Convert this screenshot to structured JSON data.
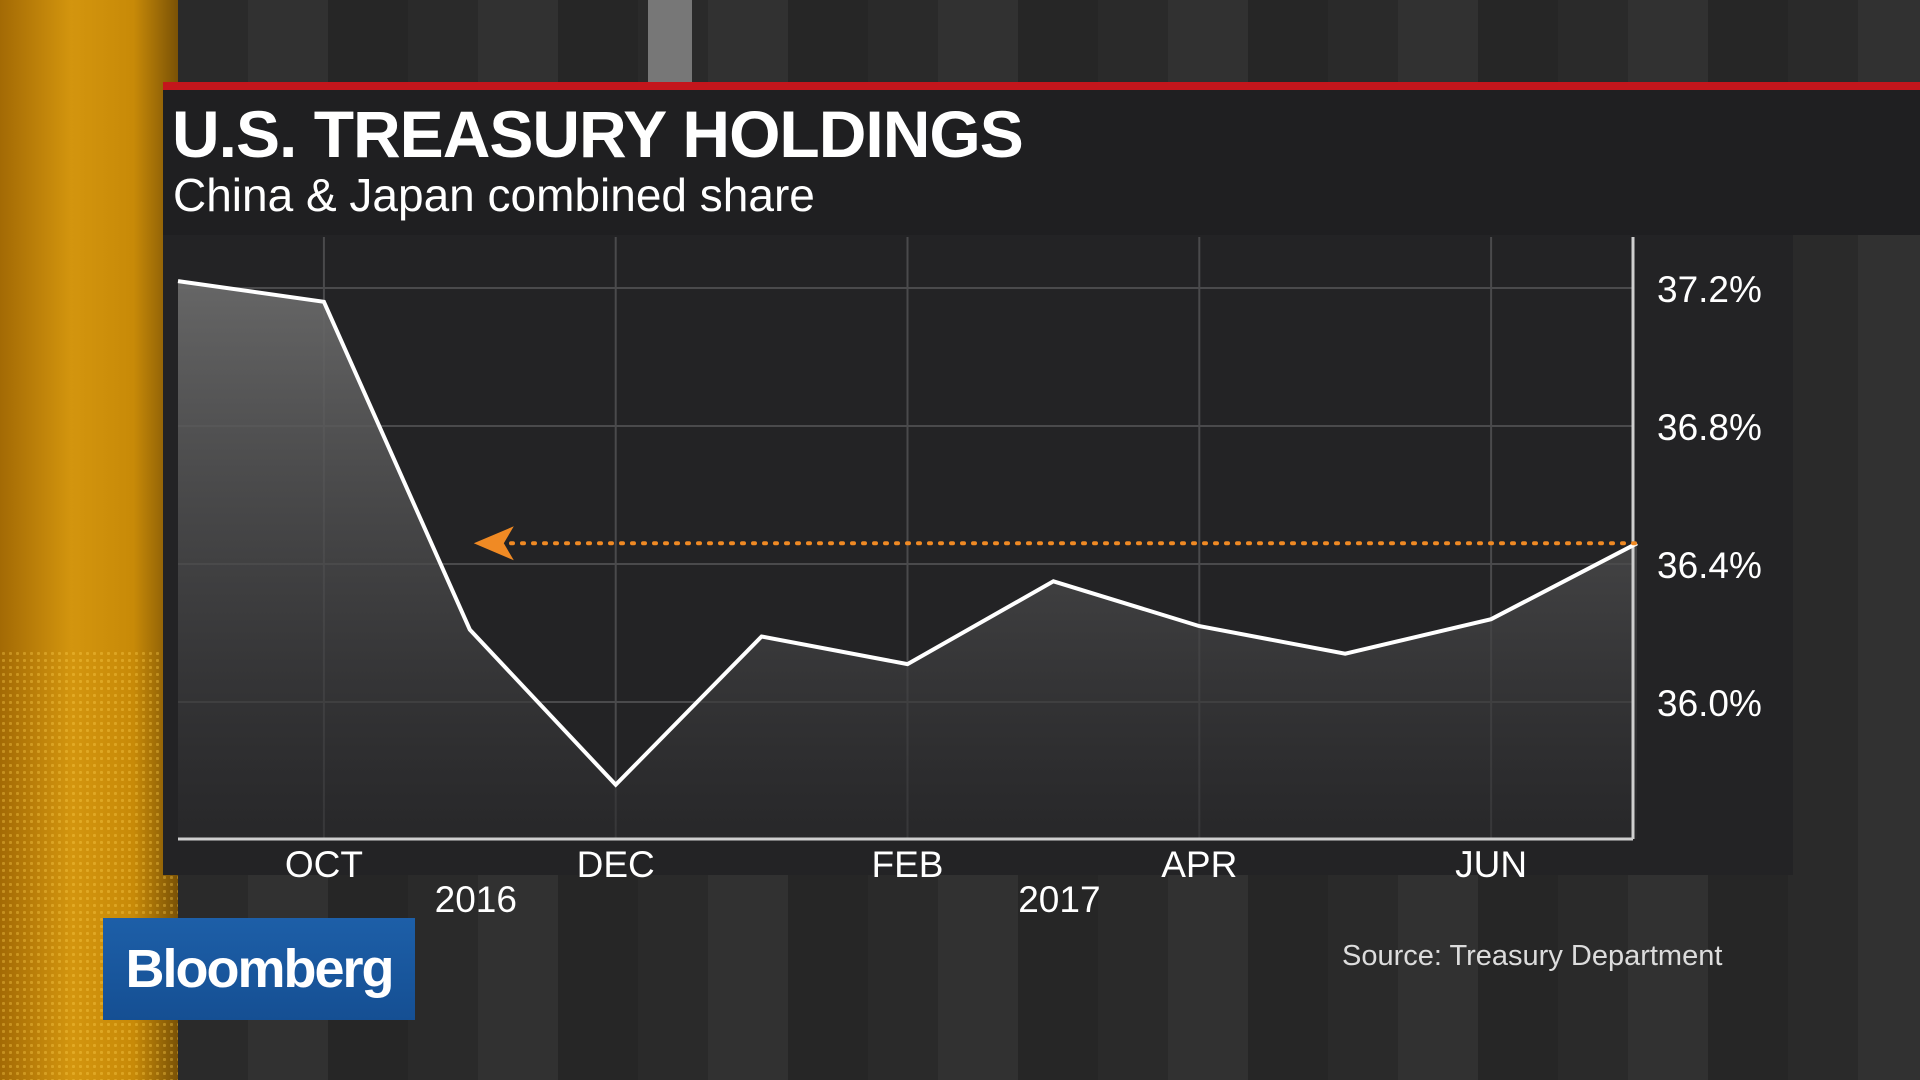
{
  "header": {
    "title": "U.S. TREASURY HOLDINGS",
    "subtitle": "China & Japan combined share"
  },
  "source": "Source: Treasury Department",
  "brand": {
    "logo_text": "Bloomberg",
    "logo_color": "#1a5aa3",
    "accent_red": "#c4161c",
    "accent_orange": "#f08a24"
  },
  "chart_data": {
    "type": "area",
    "title": "U.S. TREASURY HOLDINGS",
    "subtitle": "China & Japan combined share",
    "x": [
      "2016-09",
      "2016-10",
      "2016-11",
      "2016-12",
      "2017-01",
      "2017-02",
      "2017-03",
      "2017-04",
      "2017-05",
      "2017-06",
      "2017-07"
    ],
    "series": [
      {
        "values": [
          37.22,
          37.16,
          36.21,
          35.76,
          36.19,
          36.11,
          36.35,
          36.22,
          36.14,
          36.24,
          36.46
        ]
      }
    ],
    "x_ticks": [
      {
        "x": "2016-10",
        "label": "OCT"
      },
      {
        "x": "2016-12",
        "label": "DEC"
      },
      {
        "x": "2017-02",
        "label": "FEB"
      },
      {
        "x": "2017-04",
        "label": "APR"
      },
      {
        "x": "2017-06",
        "label": "JUN"
      }
    ],
    "year_labels": [
      {
        "x": "2016-11",
        "label": "2016"
      },
      {
        "x": "2017-03",
        "label": "2017"
      }
    ],
    "y_ticks": [
      {
        "value": 36.0,
        "label": "36.0%"
      },
      {
        "value": 36.4,
        "label": "36.4%"
      },
      {
        "value": 36.8,
        "label": "36.8%"
      },
      {
        "value": 37.2,
        "label": "37.2%"
      }
    ],
    "ylim": [
      35.62,
      37.36
    ],
    "y_axis_side": "right",
    "grid": true,
    "annotation": {
      "type": "dotted-arrow",
      "y": 36.46,
      "from_x": "2017-07",
      "to_x": "2016-11",
      "color": "#f08a24"
    },
    "line_color": "#ffffff"
  }
}
